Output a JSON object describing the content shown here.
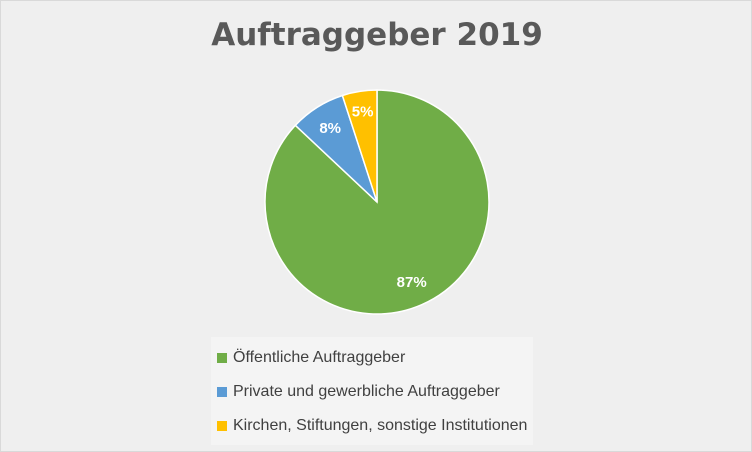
{
  "chart_data": {
    "type": "pie",
    "title": "Auftraggeber 2019",
    "categories": [
      "Öffentliche Auftraggeber",
      "Private und gewerbliche Auftraggeber",
      "Kirchen, Stiftungen, sonstige Institutionen"
    ],
    "values": [
      87,
      8,
      5
    ],
    "labels": [
      "87%",
      "8%",
      "5%"
    ],
    "colors": [
      "#70AD47",
      "#5B9BD5",
      "#FFC000"
    ],
    "legend_position": "bottom"
  }
}
